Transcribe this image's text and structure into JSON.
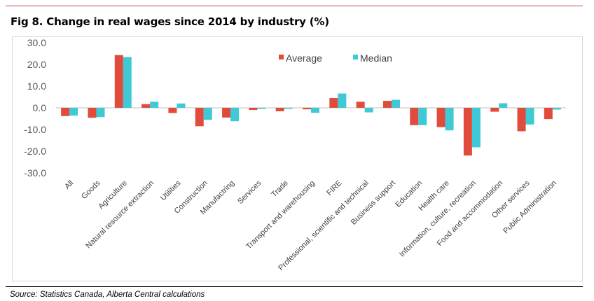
{
  "title": "Fig 8. Change in real wages since 2014 by industry (%)",
  "source": "Source: Statistics Canada, Alberta Central calculations",
  "colors": {
    "accent_rule": "#c0504d",
    "average": "#e04b3c",
    "median": "#3ec9d4"
  },
  "chart_data": {
    "type": "bar",
    "title": "",
    "xlabel": "",
    "ylabel": "",
    "ylim": [
      -30,
      30
    ],
    "yticks": [
      "30.0",
      "20.0",
      "10.0",
      "0.0",
      "-10.0",
      "-20.0",
      "-30.0"
    ],
    "ytick_values": [
      30,
      20,
      10,
      0,
      -10,
      -20,
      -30
    ],
    "grid": false,
    "legend_position": "top-center",
    "categories": [
      "All",
      "Goods",
      "Agriculture",
      "Natural resource extraction",
      "Utilities",
      "Construction",
      "Manufactring",
      "Services",
      "Trade",
      "Transport and warehousing",
      "FIRE",
      "Professional, scientific and technical",
      "Business support",
      "Education",
      "Health care",
      "Information, culture, recreation",
      "Food and accommodation",
      "Other services",
      "Public Administration"
    ],
    "series": [
      {
        "name": "Average",
        "color": "#e04b3c",
        "values": [
          -3.8,
          -4.6,
          24.3,
          1.7,
          -2.4,
          -8.5,
          -4.5,
          -1.0,
          -1.6,
          -0.7,
          4.5,
          2.8,
          3.2,
          -8.0,
          -8.9,
          -22.0,
          -1.8,
          -10.8,
          -5.2
        ]
      },
      {
        "name": "Median",
        "color": "#3ec9d4",
        "values": [
          -3.6,
          -4.3,
          23.4,
          2.8,
          2.0,
          -5.5,
          -6.2,
          -0.5,
          -0.5,
          -2.3,
          6.6,
          -2.1,
          3.7,
          -8.0,
          -10.4,
          -18.2,
          2.1,
          -7.7,
          -0.8
        ]
      }
    ]
  }
}
